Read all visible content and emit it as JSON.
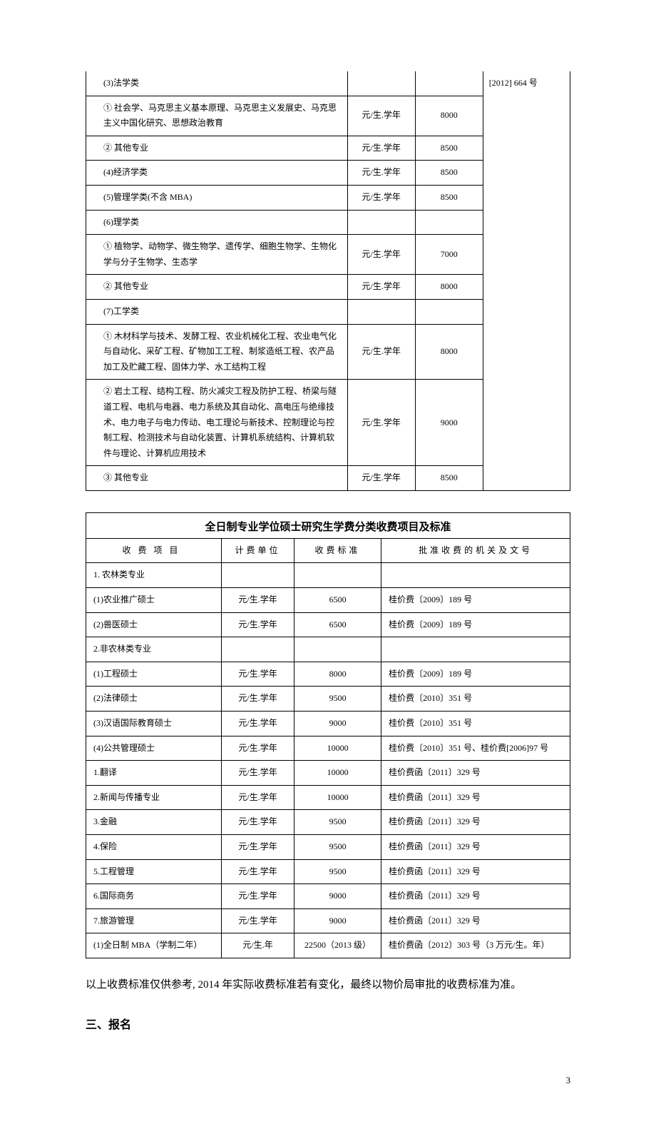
{
  "table1": {
    "doc_ref": "[2012] 664 号",
    "rows": [
      {
        "name": "(3)法学类",
        "unit": "",
        "fee": ""
      },
      {
        "name": "① 社会学、马克思主义基本原理、马克思主义发展史、马克思主义中国化研究、思想政治教育",
        "unit": "元/生.学年",
        "fee": "8000"
      },
      {
        "name": "② 其他专业",
        "unit": "元/生.学年",
        "fee": "8500"
      },
      {
        "name": "(4)经济学类",
        "unit": "元/生.学年",
        "fee": "8500"
      },
      {
        "name": "(5)管理学类(不含 MBA)",
        "unit": "元/生.学年",
        "fee": "8500"
      },
      {
        "name": "(6)理学类",
        "unit": "",
        "fee": ""
      },
      {
        "name": "① 植物学、动物学、微生物学、遗传学、细胞生物学、生物化学与分子生物学、生态学",
        "unit": "元/生.学年",
        "fee": "7000"
      },
      {
        "name": "② 其他专业",
        "unit": "元/生.学年",
        "fee": "8000"
      },
      {
        "name": "(7)工学类",
        "unit": "",
        "fee": ""
      },
      {
        "name": "① 木材科学与技术、发酵工程、农业机械化工程、农业电气化与自动化、采矿工程、矿物加工工程、制浆造纸工程、农产品加工及贮藏工程、固体力学、水工结构工程",
        "unit": "元/生.学年",
        "fee": "8000"
      },
      {
        "name": "② 岩土工程、结构工程、防火减灾工程及防护工程、桥梁与隧道工程、电机与电器、电力系统及其自动化、高电压与绝缘技术、电力电子与电力传动、电工理论与新技术、控制理论与控制工程、检测技术与自动化装置、计算机系统结构、计算机软件与理论、计算机应用技术",
        "unit": "元/生.学年",
        "fee": "9000"
      },
      {
        "name": "③ 其他专业",
        "unit": "元/生.学年",
        "fee": "8500"
      }
    ]
  },
  "table2": {
    "title": "全日制专业学位硕士研究生学费分类收费项目及标准",
    "headers": [
      "收费项目",
      "计费单位",
      "收费标准",
      "批准收费的机关及文号"
    ],
    "rows": [
      {
        "name": "1. 农林类专业",
        "unit": "",
        "fee": "",
        "doc": ""
      },
      {
        "name": "(1)农业推广硕士",
        "unit": "元/生.学年",
        "fee": "6500",
        "doc": "桂价费〔2009〕189 号"
      },
      {
        "name": "(2)兽医硕士",
        "unit": "元/生.学年",
        "fee": "6500",
        "doc": "桂价费〔2009〕189 号"
      },
      {
        "name": "2.非农林类专业",
        "unit": "",
        "fee": "",
        "doc": ""
      },
      {
        "name": "(1)工程硕士",
        "unit": "元/生.学年",
        "fee": "8000",
        "doc": "桂价费〔2009〕189 号"
      },
      {
        "name": "(2)法律硕士",
        "unit": "元/生.学年",
        "fee": "9500",
        "doc": "桂价费〔2010〕351 号"
      },
      {
        "name": "(3)汉语国际教育硕士",
        "unit": "元/生.学年",
        "fee": "9000",
        "doc": "桂价费〔2010〕351 号"
      },
      {
        "name": "(4)公共管理硕士",
        "unit": "元/生.学年",
        "fee": "10000",
        "doc": "桂价费〔2010〕351 号、桂价费[2006]97 号"
      },
      {
        "name": "1.翻译",
        "unit": "元/生.学年",
        "fee": "10000",
        "doc": "桂价费函〔2011〕329 号"
      },
      {
        "name": "2.新闻与传播专业",
        "unit": "元/生.学年",
        "fee": "10000",
        "doc": "桂价费函〔2011〕329 号"
      },
      {
        "name": "3.金融",
        "unit": "元/生.学年",
        "fee": "9500",
        "doc": "桂价费函〔2011〕329 号"
      },
      {
        "name": "4.保险",
        "unit": "元/生.学年",
        "fee": "9500",
        "doc": "桂价费函〔2011〕329 号"
      },
      {
        "name": "5.工程管理",
        "unit": "元/生.学年",
        "fee": "9500",
        "doc": "桂价费函〔2011〕329 号"
      },
      {
        "name": "6.国际商务",
        "unit": "元/生.学年",
        "fee": "9000",
        "doc": "桂价费函〔2011〕329 号"
      },
      {
        "name": "7.旅游管理",
        "unit": "元/生.学年",
        "fee": "9000",
        "doc": "桂价费函〔2011〕329 号"
      },
      {
        "name": "(1)全日制 MBA（学制二年）",
        "unit": "元/生.年",
        "fee": "22500（2013 级）",
        "doc": "桂价费函〔2012〕303 号（3 万元/生。年）"
      }
    ]
  },
  "note": "以上收费标准仅供参考, 2014 年实际收费标准若有变化，最终以物价局审批的收费标准为准。",
  "section_heading": "三、报名",
  "page_number": "3"
}
